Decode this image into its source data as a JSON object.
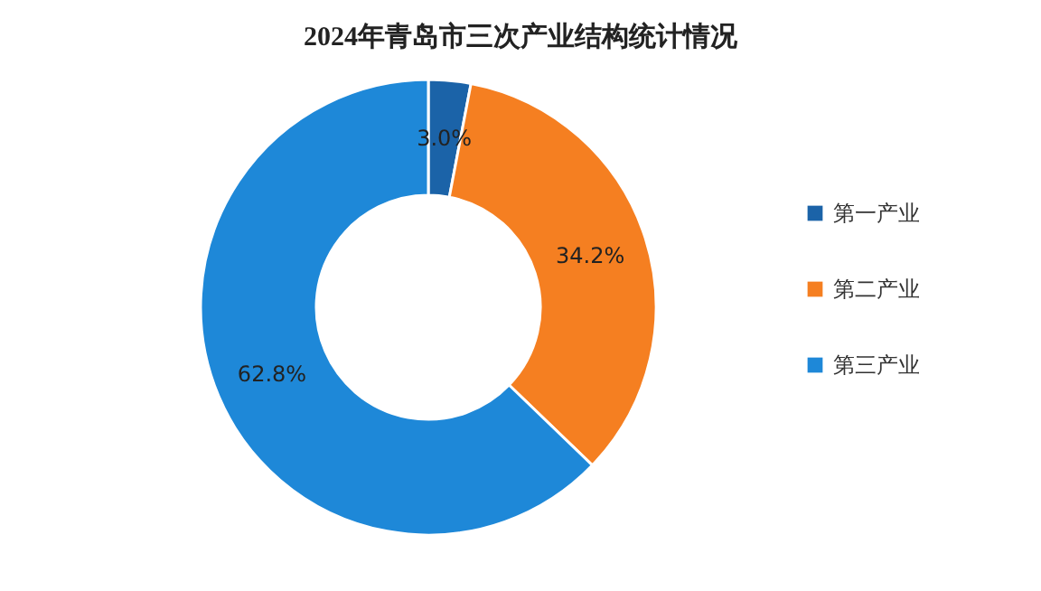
{
  "chart_data": {
    "type": "donut",
    "title": "2024年青岛市三次产业结构统计情况",
    "categories": [
      "第一产业",
      "第二产业",
      "第三产业"
    ],
    "values": [
      3.0,
      34.2,
      62.8
    ],
    "colors": [
      "#1b63a8",
      "#f57f21",
      "#1e88d8"
    ],
    "value_labels": [
      "3.0%",
      "34.2%",
      "62.8%"
    ],
    "legend": "right"
  }
}
